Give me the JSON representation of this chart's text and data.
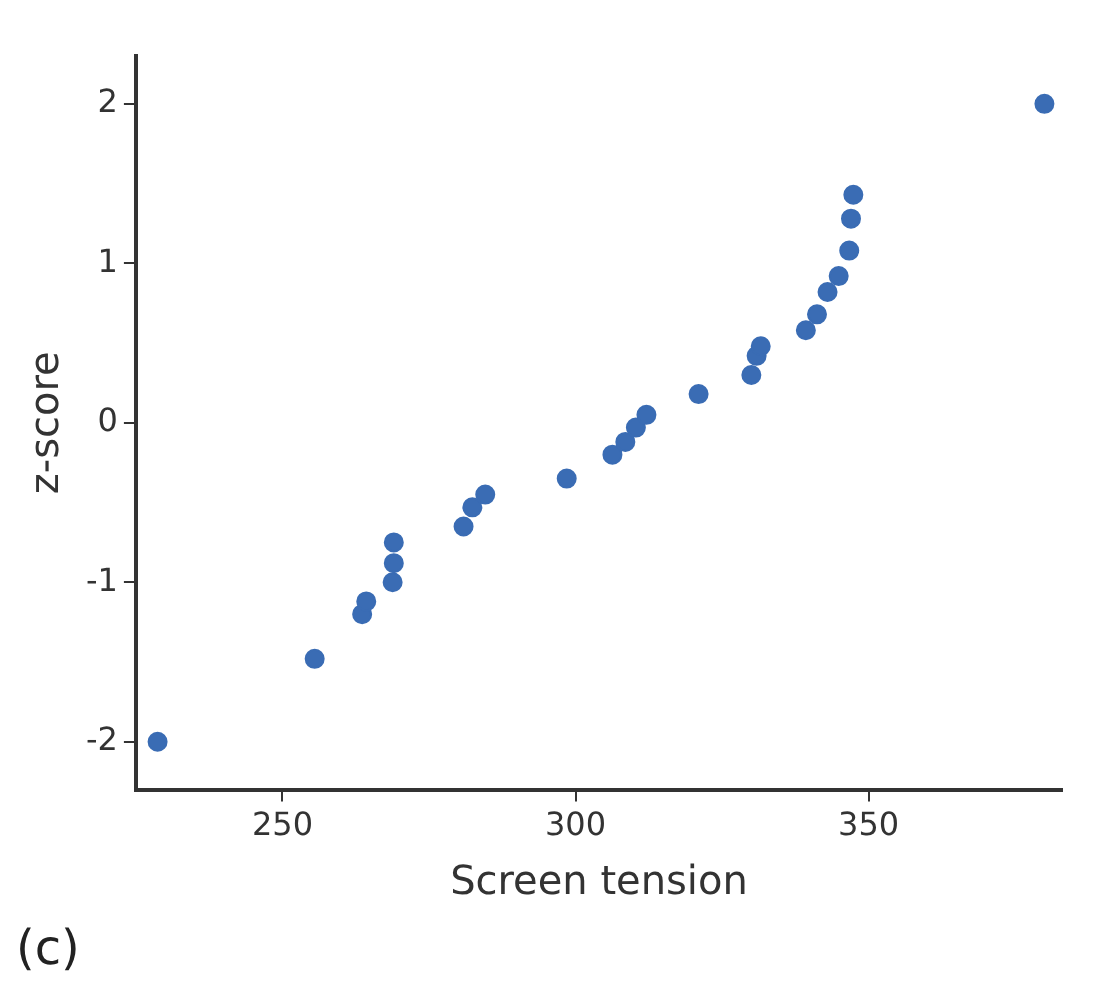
{
  "chart_data": {
    "type": "scatter",
    "xlabel": "Screen tension",
    "ylabel": "z-score",
    "annotations": [
      "(c)"
    ],
    "x": [
      228.7,
      255.5,
      263.6,
      264.3,
      268.8,
      269,
      269,
      280.9,
      282.4,
      284.6,
      298.5,
      306.3,
      308.5,
      310.3,
      312.1,
      321,
      330,
      330.9,
      331.6,
      339.3,
      341.2,
      343,
      344.9,
      346.7,
      347,
      347.4,
      380
    ],
    "values": [
      -2,
      -1.48,
      -1.2,
      -1.12,
      -1,
      -0.88,
      -0.75,
      -0.65,
      -0.53,
      -0.45,
      -0.35,
      -0.2,
      -0.12,
      -0.03,
      0.05,
      0.18,
      0.3,
      0.42,
      0.48,
      0.58,
      0.68,
      0.82,
      0.92,
      1.08,
      1.28,
      1.43,
      2
    ],
    "color": "#3a6cb4",
    "marker": "circle",
    "grid": false,
    "legend": false,
    "xlim": [
      225,
      383
    ],
    "xticks": [
      250,
      300,
      350
    ],
    "ylim": [
      -2.3,
      2.3
    ],
    "yticks": [
      -2,
      -1,
      0,
      1,
      2
    ]
  }
}
